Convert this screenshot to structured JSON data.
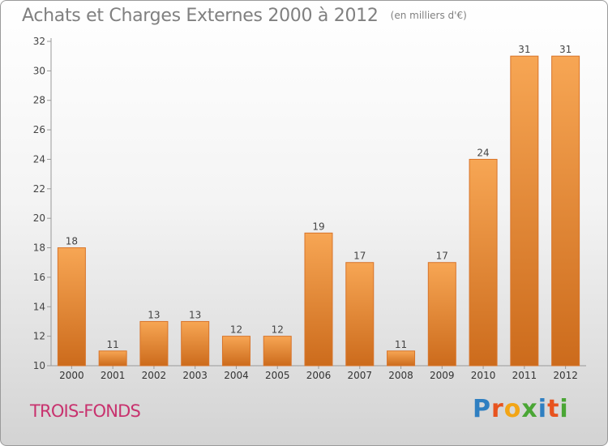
{
  "chart_data": {
    "type": "bar",
    "title": "Achats et Charges Externes 2000 à 2012",
    "subtitle": "(en milliers d'€)",
    "categories": [
      "2000",
      "2001",
      "2002",
      "2003",
      "2004",
      "2005",
      "2006",
      "2007",
      "2008",
      "2009",
      "2010",
      "2011",
      "2012"
    ],
    "values": [
      18,
      11,
      13,
      13,
      12,
      12,
      19,
      17,
      11,
      17,
      24,
      31,
      31
    ],
    "ylim": [
      10,
      32
    ],
    "yticks": [
      10,
      12,
      14,
      16,
      18,
      20,
      22,
      24,
      26,
      28,
      30,
      32
    ],
    "grid": false,
    "data_labels": true,
    "xlabel": "",
    "ylabel": "",
    "bar_color_top": "#f7a654",
    "bar_color_bottom": "#cc6b1c"
  },
  "footer": {
    "commune_name": "TROIS-FONDS",
    "commune_color": "#c8326e"
  },
  "logo": {
    "text": "Proxiti",
    "letters": [
      {
        "ch": "P",
        "color": "#2f7fc1"
      },
      {
        "ch": "r",
        "color": "#e8531e"
      },
      {
        "ch": "o",
        "color": "#f2a516"
      },
      {
        "ch": "x",
        "color": "#4aa635"
      },
      {
        "ch": "i",
        "color": "#2f7fc1"
      },
      {
        "ch": "t",
        "color": "#e8531e"
      },
      {
        "ch": "i",
        "color": "#4aa635"
      }
    ]
  }
}
